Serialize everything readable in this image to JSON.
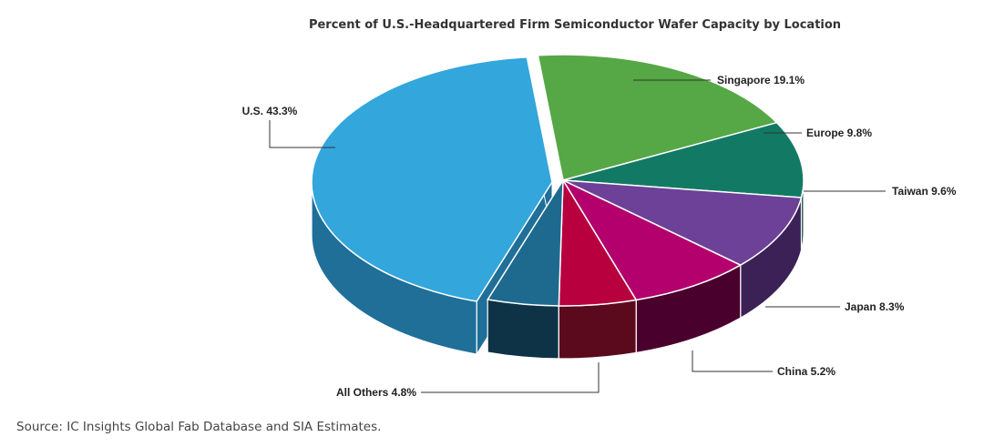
{
  "chart_data": {
    "type": "pie",
    "title": "Percent of U.S.-Headquartered Firm Semiconductor Wafer Capacity by Location",
    "three_d": true,
    "slices": [
      {
        "name": "Singapore",
        "label": "Singapore 19.1%",
        "value": 19.1,
        "color": "#55a845",
        "side_color": "#2f6b28"
      },
      {
        "name": "Europe",
        "label": "Europe 9.8%",
        "value": 9.8,
        "color": "#127a64",
        "side_color": "#0b4a3d"
      },
      {
        "name": "Taiwan",
        "label": "Taiwan 9.6%",
        "value": 9.6,
        "color": "#6c4197",
        "side_color": "#3b2156"
      },
      {
        "name": "Japan",
        "label": "Japan 8.3%",
        "value": 8.3,
        "color": "#b3006c",
        "side_color": "#4a002c"
      },
      {
        "name": "China",
        "label": "China 5.2%",
        "value": 5.2,
        "color": "#b8003e",
        "side_color": "#5a0a1c"
      },
      {
        "name": "All Others",
        "label": "All Others 4.8%",
        "value": 4.8,
        "color": "#1e6a8f",
        "side_color": "#0e3346"
      },
      {
        "name": "U.S.",
        "label": "U.S. 43.3%",
        "value": 43.3,
        "color": "#33a6dc",
        "side_color": "#1f6f99"
      }
    ]
  },
  "source": "Source: IC Insights Global Fab Database and SIA Estimates."
}
